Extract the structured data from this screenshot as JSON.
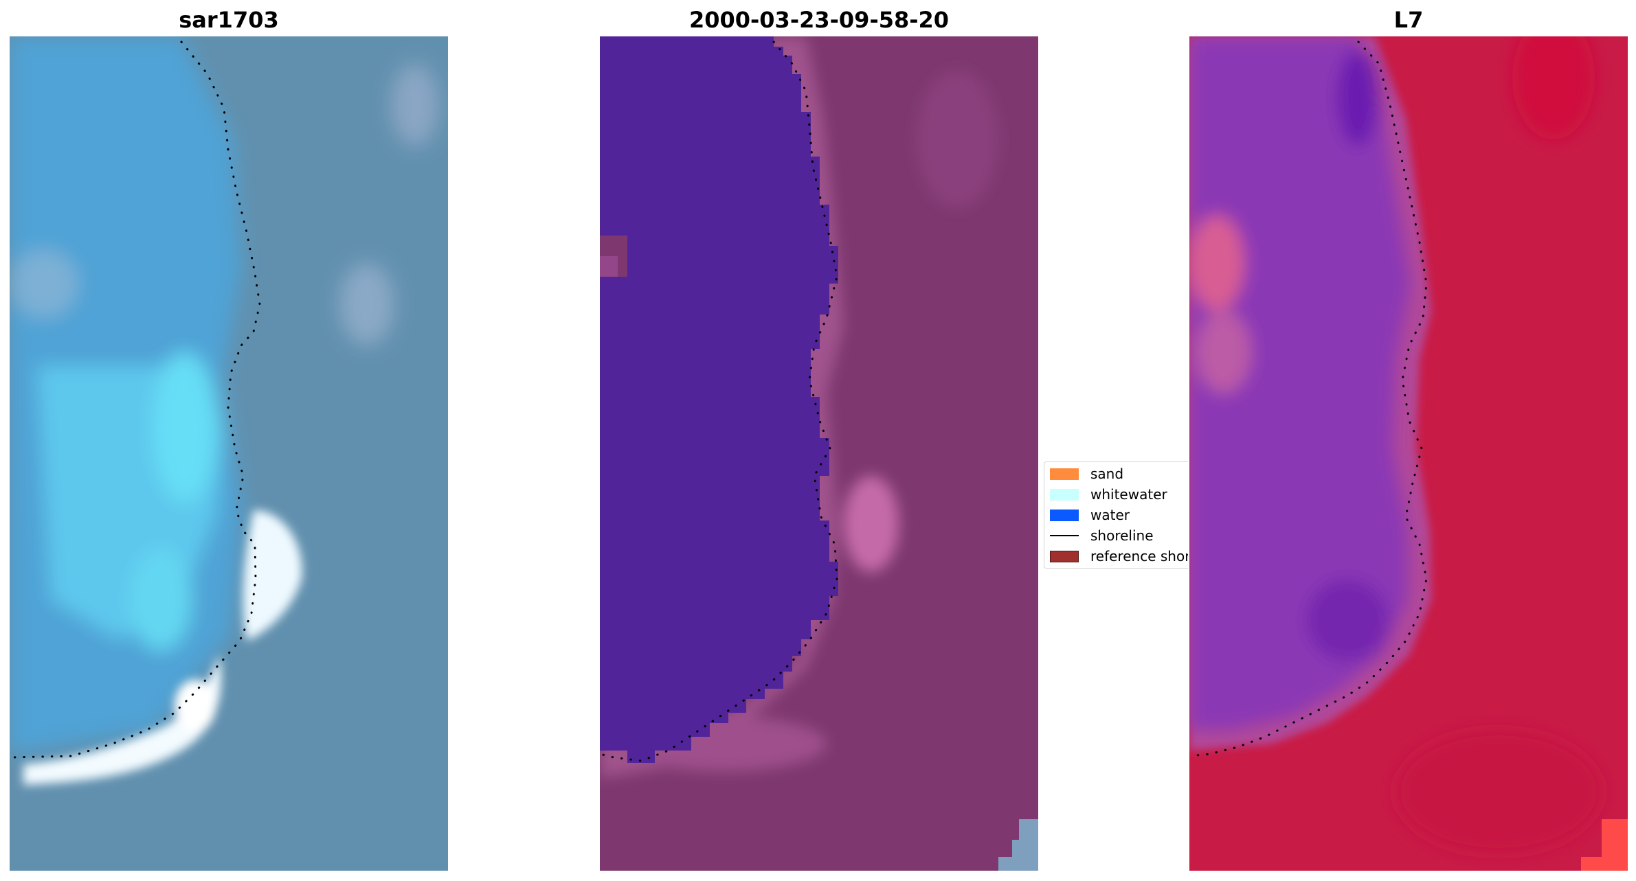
{
  "panels": [
    {
      "title": "sar1703"
    },
    {
      "title": "2000-03-23-09-58-20"
    },
    {
      "title": "L7"
    }
  ],
  "legend": {
    "items": [
      {
        "label": "sand",
        "color": "#ff8c3c"
      },
      {
        "label": "whitewater",
        "color": "#c8ffff"
      },
      {
        "label": "water",
        "color": "#0a5aff"
      },
      {
        "label": "shoreline",
        "color": "#000000"
      },
      {
        "label": "reference shoreline",
        "color": "#a03030"
      }
    ]
  },
  "colors": {
    "rgb_water": "#4fa3d6",
    "rgb_bright_water": "#63d7f2",
    "rgb_land": "#6190ae",
    "rgb_whitewater": "#f4fbff",
    "class_water": "#52249a",
    "class_land": "#7e386f",
    "class_wash": "#c46aa8",
    "ndwi_water": "#8b38b5",
    "ndwi_land": "#c81b46",
    "shoreline_dots": "#000000"
  }
}
